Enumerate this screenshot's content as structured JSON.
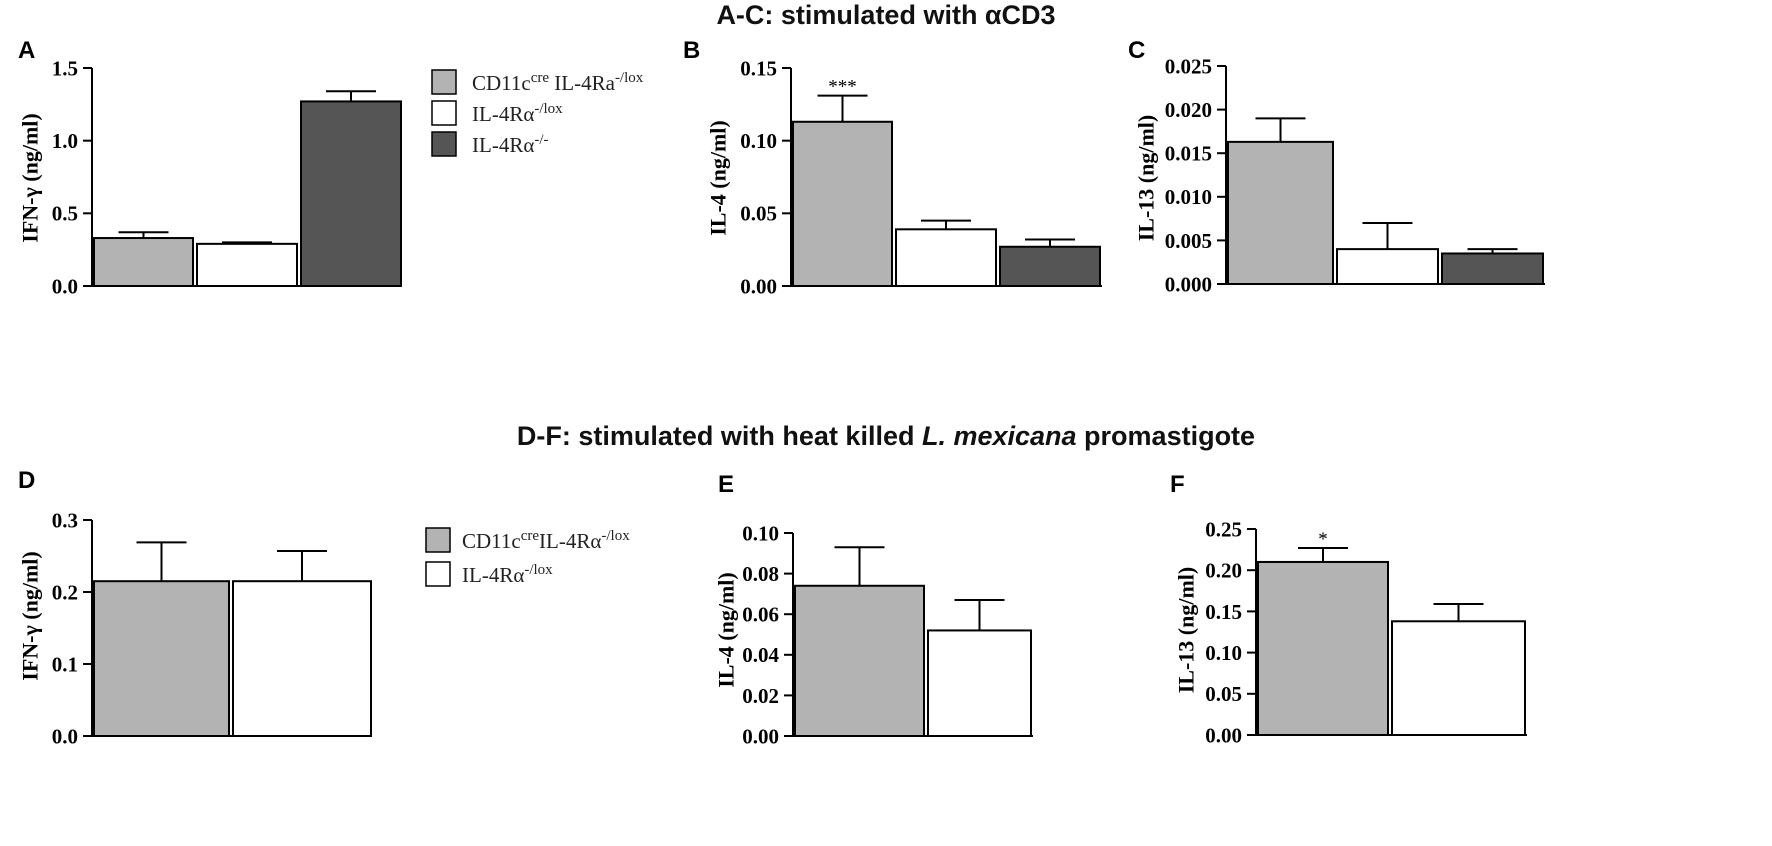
{
  "titles": {
    "top": "A-C: stimulated with αCD3",
    "bottom_pre": "D-F: stimulated with heat killed ",
    "bottom_italic": "L. mexicana",
    "bottom_post": " promastigote"
  },
  "colors": {
    "CD11c_cre": "#b3b3b3",
    "IL4Ra_lox": "#ffffff",
    "IL4Ra_ko": "#555555",
    "outline": "#000000"
  },
  "legends": [
    {
      "id": "top",
      "entries": [
        {
          "group": "CD11c_cre",
          "parts": [
            [
              "CD11c",
              ""
            ],
            [
              "cre",
              "sup"
            ],
            [
              " IL-4Ra",
              ""
            ],
            [
              "-/lox",
              "sup"
            ]
          ]
        },
        {
          "group": "IL4Ra_lox",
          "parts": [
            [
              "IL-4Rα",
              ""
            ],
            [
              "-/lox",
              "sup"
            ]
          ]
        },
        {
          "group": "IL4Ra_ko",
          "parts": [
            [
              "IL-4Rα",
              ""
            ],
            [
              "-/-",
              "sup"
            ]
          ]
        }
      ]
    },
    {
      "id": "bottom",
      "entries": [
        {
          "group": "CD11c_cre",
          "parts": [
            [
              "CD11c",
              ""
            ],
            [
              "cre",
              "sup"
            ],
            [
              "IL-4Rα",
              ""
            ],
            [
              "-/lox",
              "sup"
            ]
          ]
        },
        {
          "group": "IL4Ra_lox",
          "parts": [
            [
              "IL-4Rα",
              ""
            ],
            [
              "-/lox",
              "sup"
            ]
          ]
        }
      ]
    }
  ],
  "chart_data": [
    {
      "panel": "A",
      "type": "bar",
      "title": "A-C: stimulated with αCD3",
      "ylabel": "IFN-γ (ng/ml)",
      "ylim": [
        0,
        1.5
      ],
      "yticks": [
        "0.0",
        "0.5",
        "1.0",
        "1.5"
      ],
      "groups": [
        "CD11c_cre",
        "IL4Ra_lox",
        "IL4Ra_ko"
      ],
      "values": [
        0.33,
        0.29,
        1.27
      ],
      "errors": [
        0.04,
        0.01,
        0.07
      ],
      "significance": [
        "",
        "",
        ""
      ]
    },
    {
      "panel": "B",
      "type": "bar",
      "title": "A-C: stimulated with αCD3",
      "ylabel": "IL-4 (ng/ml)",
      "ylim": [
        0,
        0.15
      ],
      "yticks": [
        "0.00",
        "0.05",
        "0.10",
        "0.15"
      ],
      "groups": [
        "CD11c_cre",
        "IL4Ra_lox",
        "IL4Ra_ko"
      ],
      "values": [
        0.113,
        0.039,
        0.027
      ],
      "errors": [
        0.018,
        0.006,
        0.005
      ],
      "significance": [
        "***",
        "",
        ""
      ]
    },
    {
      "panel": "C",
      "type": "bar",
      "title": "A-C: stimulated with αCD3",
      "ylabel": "IL-13 (ng/ml)",
      "ylim": [
        0,
        0.025
      ],
      "yticks": [
        "0.000",
        "0.005",
        "0.010",
        "0.015",
        "0.020",
        "0.025"
      ],
      "groups": [
        "CD11c_cre",
        "IL4Ra_lox",
        "IL4Ra_ko"
      ],
      "values": [
        0.0163,
        0.004,
        0.0035
      ],
      "errors": [
        0.0027,
        0.003,
        0.0005
      ],
      "significance": [
        "",
        "",
        ""
      ]
    },
    {
      "panel": "D",
      "type": "bar",
      "title": "D-F: stimulated with heat killed L. mexicana promastigote",
      "ylabel": "IFN-γ (ng/ml)",
      "ylim": [
        0,
        0.3
      ],
      "yticks": [
        "0.0",
        "0.1",
        "0.2",
        "0.3"
      ],
      "groups": [
        "CD11c_cre",
        "IL4Ra_lox"
      ],
      "values": [
        0.215,
        0.215
      ],
      "errors": [
        0.054,
        0.042
      ],
      "significance": [
        "",
        ""
      ]
    },
    {
      "panel": "E",
      "type": "bar",
      "title": "D-F: stimulated with heat killed L. mexicana promastigote",
      "ylabel": "IL-4 (ng/ml)",
      "ylim": [
        0,
        0.1
      ],
      "yticks": [
        "0.00",
        "0.02",
        "0.04",
        "0.06",
        "0.08",
        "0.10"
      ],
      "groups": [
        "CD11c_cre",
        "IL4Ra_lox"
      ],
      "values": [
        0.074,
        0.052
      ],
      "errors": [
        0.019,
        0.015
      ],
      "significance": [
        "",
        ""
      ]
    },
    {
      "panel": "F",
      "type": "bar",
      "title": "D-F: stimulated with heat killed L. mexicana promastigote",
      "ylabel": "IL-13 (ng/ml)",
      "ylim": [
        0,
        0.25
      ],
      "yticks": [
        "0.00",
        "0.05",
        "0.10",
        "0.15",
        "0.20",
        "0.25"
      ],
      "groups": [
        "CD11c_cre",
        "IL4Ra_lox"
      ],
      "values": [
        0.21,
        0.138
      ],
      "errors": [
        0.017,
        0.021
      ],
      "significance": [
        "*",
        ""
      ]
    }
  ]
}
